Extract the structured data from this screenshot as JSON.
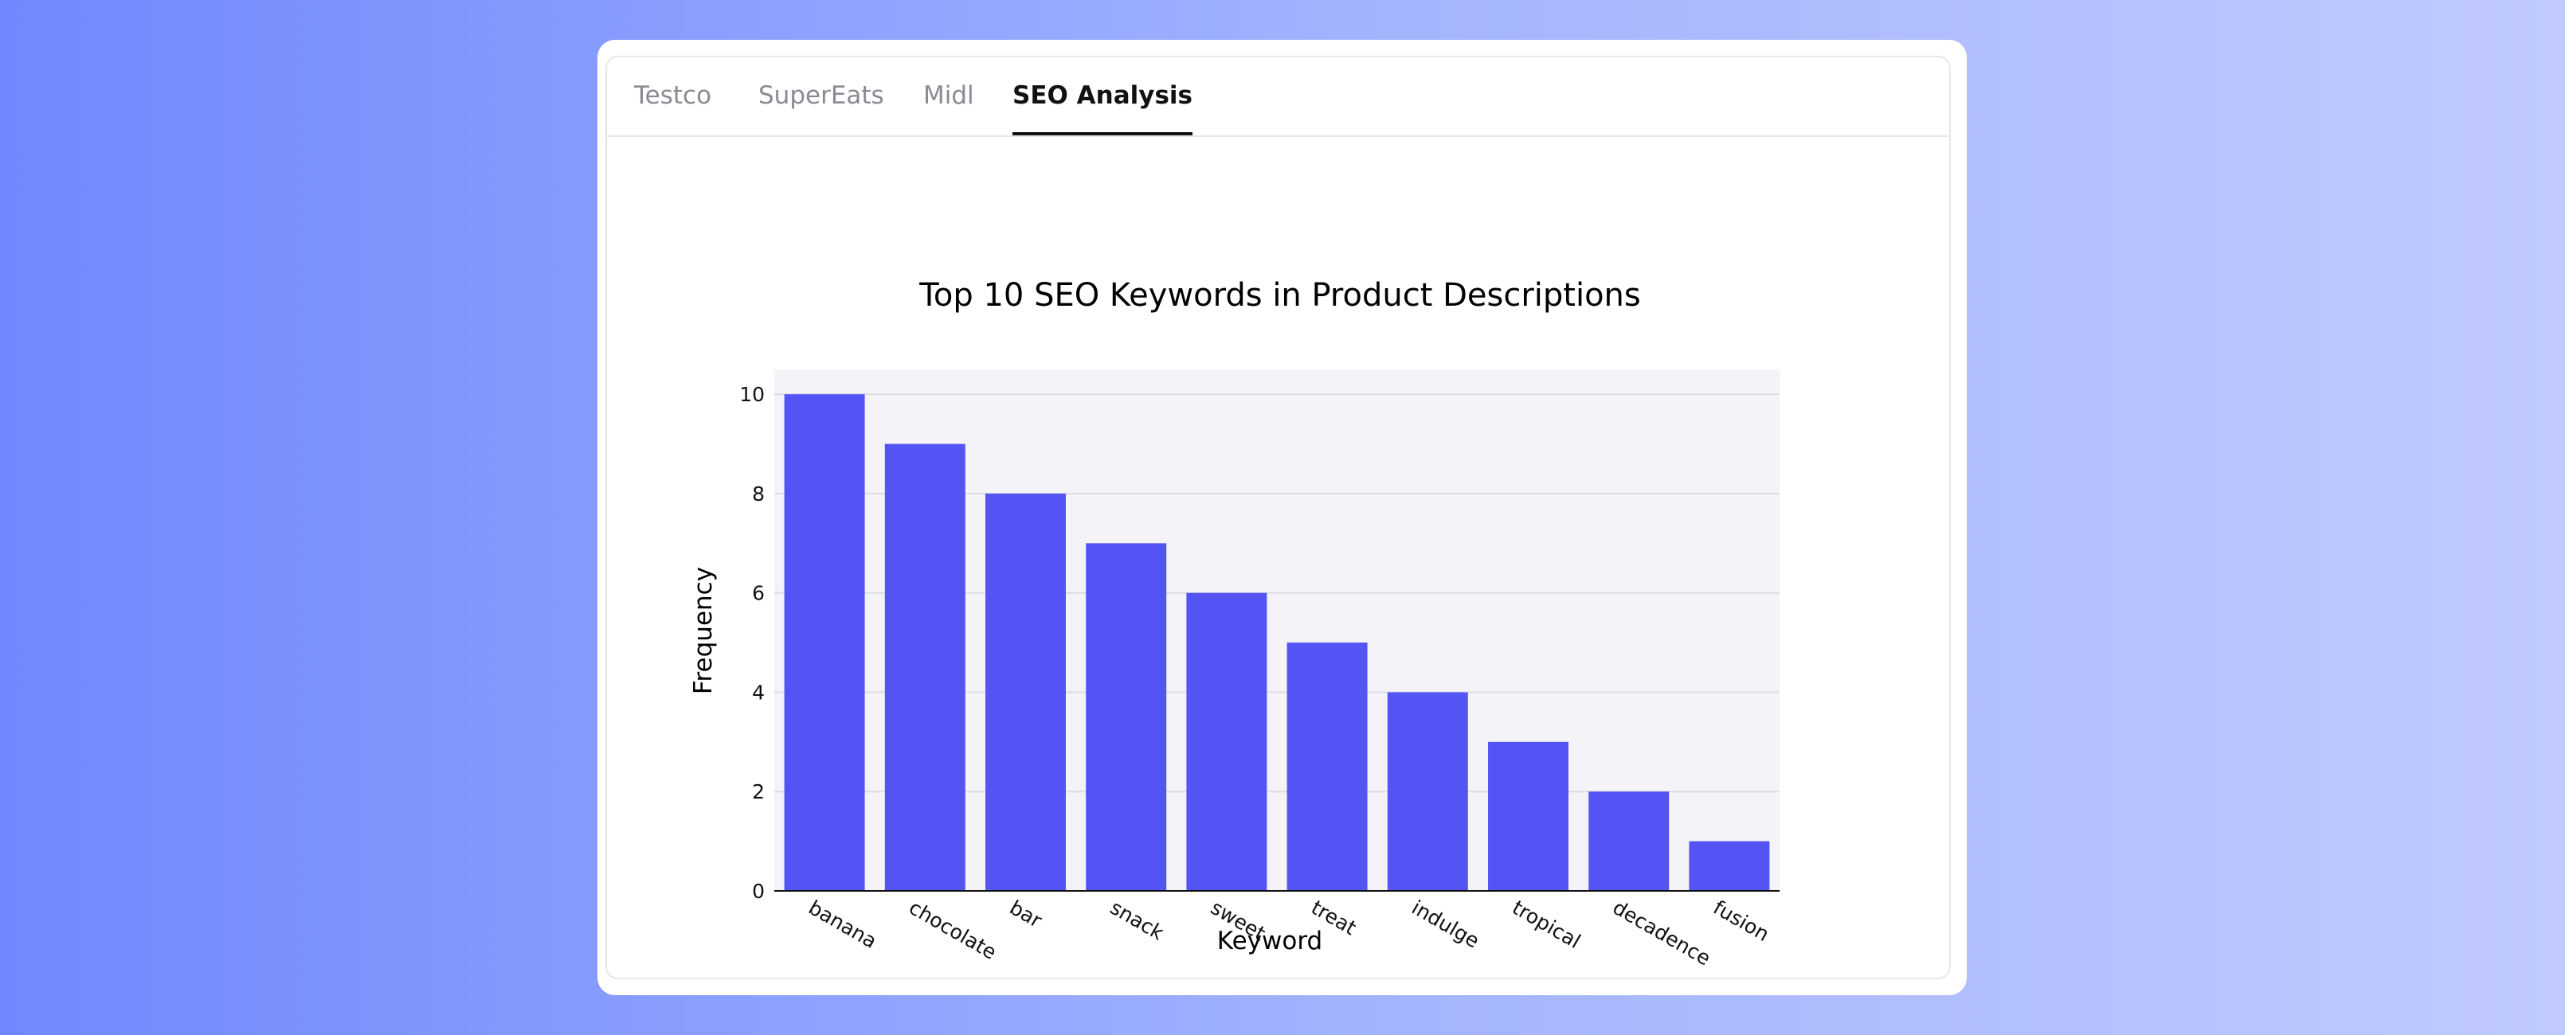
{
  "tabs": [
    {
      "label": "Testco",
      "active": false
    },
    {
      "label": "SuperEats",
      "active": false
    },
    {
      "label": "Midl",
      "active": false
    },
    {
      "label": "SEO Analysis",
      "active": true
    }
  ],
  "colors": {
    "bar": "#5454f4",
    "plot_background": "#f3f3f8",
    "grid": "#dcdce4",
    "text": "#111111"
  },
  "chart_data": {
    "type": "bar",
    "title": "Top 10 SEO Keywords in Product Descriptions",
    "xlabel": "Keyword",
    "ylabel": "Frequency",
    "categories": [
      "banana",
      "chocolate",
      "bar",
      "snack",
      "sweet",
      "treat",
      "indulge",
      "tropical",
      "decadence",
      "fusion"
    ],
    "values": [
      10,
      9,
      8,
      7,
      6,
      5,
      4,
      3,
      2,
      1
    ],
    "ylim": [
      0,
      10.5
    ],
    "yticks": [
      0,
      2,
      4,
      6,
      8,
      10
    ],
    "grid": true,
    "legend": "none"
  }
}
